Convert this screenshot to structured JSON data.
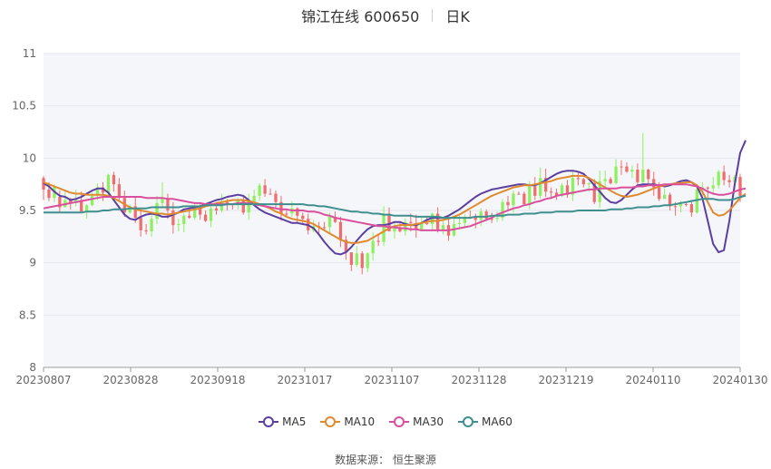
{
  "title": {
    "name": "锦江在线 600650",
    "period": "日K"
  },
  "source": "数据来源： 恒生聚源",
  "colors": {
    "up": "#f06d6d",
    "down": "#8ef05f",
    "plot_bg": "#f5f6fa",
    "grid": "#e3e6ee"
  },
  "chart_data": {
    "type": "candlestick",
    "x_labels": [
      "20230807",
      "20230828",
      "20230918",
      "20231017",
      "20231107",
      "20231128",
      "20231219",
      "20240110",
      "20240130"
    ],
    "y_ticks": [
      "8",
      "8.5",
      "9",
      "9.5",
      "10",
      "10.5",
      "11"
    ],
    "ylim": [
      8,
      11
    ],
    "series": [
      {
        "name": "MA5",
        "color": "#5b3fa0",
        "values": [
          9.76,
          9.73,
          9.68,
          9.64,
          9.63,
          9.6,
          9.61,
          9.63,
          9.66,
          9.69,
          9.71,
          9.71,
          9.67,
          9.6,
          9.53,
          9.46,
          9.42,
          9.41,
          9.44,
          9.46,
          9.47,
          9.46,
          9.44,
          9.44,
          9.46,
          9.48,
          9.51,
          9.52,
          9.53,
          9.54,
          9.56,
          9.58,
          9.6,
          9.61,
          9.63,
          9.64,
          9.65,
          9.64,
          9.6,
          9.55,
          9.51,
          9.48,
          9.46,
          9.44,
          9.42,
          9.4,
          9.38,
          9.38,
          9.37,
          9.36,
          9.33,
          9.27,
          9.2,
          9.14,
          9.09,
          9.08,
          9.1,
          9.15,
          9.21,
          9.27,
          9.32,
          9.35,
          9.36,
          9.36,
          9.37,
          9.39,
          9.39,
          9.37,
          9.36,
          9.36,
          9.38,
          9.41,
          9.43,
          9.43,
          9.43,
          9.45,
          9.48,
          9.51,
          9.55,
          9.59,
          9.63,
          9.66,
          9.68,
          9.7,
          9.71,
          9.72,
          9.73,
          9.74,
          9.75,
          9.75,
          9.74,
          9.74,
          9.76,
          9.79,
          9.82,
          9.85,
          9.87,
          9.88,
          9.88,
          9.87,
          9.85,
          9.8,
          9.74,
          9.68,
          9.62,
          9.58,
          9.57,
          9.6,
          9.65,
          9.7,
          9.74,
          9.75,
          9.75,
          9.75,
          9.74,
          9.73,
          9.74,
          9.76,
          9.78,
          9.79,
          9.77,
          9.73,
          9.62,
          9.4,
          9.18,
          9.1,
          9.12,
          9.4,
          9.75,
          10.05,
          10.17
        ]
      },
      {
        "name": "MA10",
        "color": "#e08a2e",
        "values": [
          9.77,
          9.75,
          9.73,
          9.71,
          9.69,
          9.67,
          9.66,
          9.66,
          9.65,
          9.65,
          9.65,
          9.65,
          9.64,
          9.62,
          9.59,
          9.56,
          9.53,
          9.51,
          9.5,
          9.49,
          9.48,
          9.47,
          9.47,
          9.46,
          9.47,
          9.48,
          9.49,
          9.5,
          9.51,
          9.52,
          9.54,
          9.55,
          9.57,
          9.58,
          9.59,
          9.6,
          9.6,
          9.6,
          9.59,
          9.58,
          9.56,
          9.54,
          9.52,
          9.49,
          9.47,
          9.44,
          9.42,
          9.41,
          9.4,
          9.39,
          9.37,
          9.34,
          9.31,
          9.28,
          9.25,
          9.22,
          9.2,
          9.19,
          9.19,
          9.2,
          9.21,
          9.24,
          9.27,
          9.3,
          9.33,
          9.35,
          9.36,
          9.36,
          9.36,
          9.37,
          9.38,
          9.39,
          9.4,
          9.4,
          9.41,
          9.42,
          9.44,
          9.46,
          9.49,
          9.52,
          9.55,
          9.58,
          9.61,
          9.64,
          9.66,
          9.68,
          9.7,
          9.72,
          9.73,
          9.74,
          9.74,
          9.75,
          9.76,
          9.77,
          9.78,
          9.8,
          9.81,
          9.82,
          9.83,
          9.83,
          9.83,
          9.81,
          9.78,
          9.75,
          9.72,
          9.69,
          9.66,
          9.64,
          9.63,
          9.64,
          9.65,
          9.67,
          9.69,
          9.71,
          9.73,
          9.74,
          9.75,
          9.76,
          9.76,
          9.77,
          9.77,
          9.74,
          9.68,
          9.58,
          9.48,
          9.45,
          9.46,
          9.5,
          9.56,
          9.62,
          9.66
        ]
      },
      {
        "name": "MA30",
        "color": "#d94f9e",
        "values": [
          9.52,
          9.53,
          9.54,
          9.55,
          9.56,
          9.57,
          9.58,
          9.59,
          9.6,
          9.61,
          9.62,
          9.63,
          9.63,
          9.63,
          9.63,
          9.63,
          9.63,
          9.63,
          9.63,
          9.62,
          9.62,
          9.62,
          9.62,
          9.61,
          9.61,
          9.6,
          9.59,
          9.58,
          9.57,
          9.57,
          9.56,
          9.56,
          9.56,
          9.56,
          9.56,
          9.56,
          9.57,
          9.57,
          9.57,
          9.56,
          9.55,
          9.54,
          9.53,
          9.52,
          9.51,
          9.51,
          9.5,
          9.5,
          9.5,
          9.49,
          9.49,
          9.48,
          9.46,
          9.45,
          9.43,
          9.42,
          9.41,
          9.4,
          9.39,
          9.38,
          9.37,
          9.36,
          9.35,
          9.35,
          9.34,
          9.34,
          9.33,
          9.33,
          9.32,
          9.32,
          9.31,
          9.31,
          9.31,
          9.31,
          9.31,
          9.31,
          9.32,
          9.33,
          9.34,
          9.35,
          9.37,
          9.39,
          9.41,
          9.43,
          9.46,
          9.48,
          9.5,
          9.52,
          9.53,
          9.55,
          9.56,
          9.58,
          9.59,
          9.61,
          9.62,
          9.64,
          9.65,
          9.66,
          9.67,
          9.68,
          9.69,
          9.7,
          9.7,
          9.71,
          9.71,
          9.71,
          9.71,
          9.72,
          9.72,
          9.72,
          9.73,
          9.73,
          9.74,
          9.74,
          9.74,
          9.75,
          9.75,
          9.75,
          9.75,
          9.75,
          9.74,
          9.73,
          9.71,
          9.68,
          9.66,
          9.65,
          9.65,
          9.66,
          9.68,
          9.7,
          9.71
        ]
      },
      {
        "name": "MA60",
        "color": "#3f8f8f",
        "values": [
          9.48,
          9.48,
          9.48,
          9.48,
          9.48,
          9.48,
          9.48,
          9.48,
          9.49,
          9.49,
          9.49,
          9.5,
          9.5,
          9.51,
          9.51,
          9.51,
          9.52,
          9.52,
          9.52,
          9.52,
          9.53,
          9.53,
          9.53,
          9.53,
          9.53,
          9.53,
          9.54,
          9.54,
          9.54,
          9.54,
          9.55,
          9.55,
          9.55,
          9.55,
          9.56,
          9.56,
          9.56,
          9.56,
          9.56,
          9.56,
          9.56,
          9.56,
          9.56,
          9.56,
          9.56,
          9.56,
          9.56,
          9.56,
          9.56,
          9.55,
          9.55,
          9.54,
          9.54,
          9.53,
          9.52,
          9.51,
          9.5,
          9.49,
          9.49,
          9.48,
          9.48,
          9.47,
          9.47,
          9.46,
          9.46,
          9.45,
          9.45,
          9.45,
          9.45,
          9.44,
          9.44,
          9.44,
          9.44,
          9.44,
          9.43,
          9.43,
          9.43,
          9.43,
          9.43,
          9.43,
          9.44,
          9.44,
          9.44,
          9.45,
          9.45,
          9.45,
          9.46,
          9.46,
          9.46,
          9.47,
          9.47,
          9.47,
          9.48,
          9.48,
          9.48,
          9.49,
          9.49,
          9.49,
          9.49,
          9.5,
          9.5,
          9.5,
          9.5,
          9.5,
          9.5,
          9.51,
          9.51,
          9.51,
          9.52,
          9.52,
          9.53,
          9.53,
          9.53,
          9.54,
          9.54,
          9.55,
          9.55,
          9.56,
          9.57,
          9.58,
          9.59,
          9.6,
          9.61,
          9.61,
          9.61,
          9.6,
          9.6,
          9.6,
          9.61,
          9.63,
          9.64
        ]
      }
    ],
    "candles": [
      [
        9.7,
        9.81,
        9.83,
        9.6
      ],
      [
        9.62,
        9.7,
        9.77,
        9.59
      ],
      [
        9.73,
        9.62,
        9.75,
        9.58
      ],
      [
        9.53,
        9.63,
        9.69,
        9.48
      ],
      [
        9.6,
        9.53,
        9.68,
        9.53
      ],
      [
        9.57,
        9.6,
        9.62,
        9.51
      ],
      [
        9.6,
        9.57,
        9.7,
        9.54
      ],
      [
        9.49,
        9.6,
        9.68,
        9.48
      ],
      [
        9.55,
        9.49,
        9.56,
        9.42
      ],
      [
        9.64,
        9.55,
        9.67,
        9.54
      ],
      [
        9.72,
        9.64,
        9.76,
        9.6
      ],
      [
        9.67,
        9.72,
        9.77,
        9.59
      ],
      [
        9.84,
        9.67,
        9.85,
        9.63
      ],
      [
        9.75,
        9.84,
        9.87,
        9.68
      ],
      [
        9.62,
        9.75,
        9.81,
        9.6
      ],
      [
        9.48,
        9.62,
        9.69,
        9.44
      ],
      [
        9.54,
        9.48,
        9.56,
        9.47
      ],
      [
        9.43,
        9.54,
        9.63,
        9.38
      ],
      [
        9.31,
        9.43,
        9.51,
        9.25
      ],
      [
        9.3,
        9.31,
        9.37,
        9.27
      ],
      [
        9.42,
        9.3,
        9.47,
        9.25
      ],
      [
        9.57,
        9.42,
        9.64,
        9.37
      ],
      [
        9.61,
        9.57,
        9.77,
        9.52
      ],
      [
        9.5,
        9.61,
        9.66,
        9.42
      ],
      [
        9.36,
        9.5,
        9.58,
        9.28
      ],
      [
        9.37,
        9.36,
        9.42,
        9.3
      ],
      [
        9.45,
        9.37,
        9.47,
        9.29
      ],
      [
        9.43,
        9.45,
        9.52,
        9.42
      ],
      [
        9.54,
        9.43,
        9.56,
        9.41
      ],
      [
        9.46,
        9.54,
        9.56,
        9.41
      ],
      [
        9.4,
        9.46,
        9.5,
        9.39
      ],
      [
        9.52,
        9.4,
        9.57,
        9.34
      ],
      [
        9.5,
        9.52,
        9.54,
        9.46
      ],
      [
        9.58,
        9.5,
        9.66,
        9.48
      ],
      [
        9.56,
        9.58,
        9.61,
        9.5
      ],
      [
        9.56,
        9.56,
        9.57,
        9.51
      ],
      [
        9.6,
        9.56,
        9.62,
        9.51
      ],
      [
        9.48,
        9.6,
        9.64,
        9.46
      ],
      [
        9.59,
        9.48,
        9.66,
        9.41
      ],
      [
        9.64,
        9.59,
        9.7,
        9.57
      ],
      [
        9.74,
        9.64,
        9.76,
        9.59
      ],
      [
        9.66,
        9.74,
        9.8,
        9.63
      ],
      [
        9.66,
        9.66,
        9.71,
        9.65
      ],
      [
        9.58,
        9.66,
        9.69,
        9.52
      ],
      [
        9.47,
        9.58,
        9.64,
        9.4
      ],
      [
        9.47,
        9.47,
        9.5,
        9.44
      ],
      [
        9.52,
        9.47,
        9.59,
        9.44
      ],
      [
        9.45,
        9.52,
        9.53,
        9.38
      ],
      [
        9.42,
        9.45,
        9.48,
        9.38
      ],
      [
        9.31,
        9.42,
        9.47,
        9.27
      ],
      [
        9.35,
        9.31,
        9.41,
        9.29
      ],
      [
        9.34,
        9.35,
        9.39,
        9.27
      ],
      [
        9.34,
        9.34,
        9.39,
        9.3
      ],
      [
        9.44,
        9.34,
        9.48,
        9.27
      ],
      [
        9.39,
        9.44,
        9.49,
        9.38
      ],
      [
        9.22,
        9.39,
        9.44,
        9.15
      ],
      [
        9.1,
        9.22,
        9.26,
        9.03
      ],
      [
        8.98,
        9.1,
        9.1,
        8.92
      ],
      [
        9.09,
        8.98,
        9.16,
        8.96
      ],
      [
        8.95,
        9.09,
        9.11,
        8.89
      ],
      [
        9.09,
        8.95,
        9.1,
        8.91
      ],
      [
        9.21,
        9.09,
        9.29,
        9.02
      ],
      [
        9.2,
        9.21,
        9.27,
        9.16
      ],
      [
        9.47,
        9.2,
        9.54,
        9.16
      ],
      [
        9.3,
        9.47,
        9.53,
        9.3
      ],
      [
        9.34,
        9.3,
        9.39,
        9.23
      ],
      [
        9.3,
        9.34,
        9.39,
        9.29
      ],
      [
        9.39,
        9.3,
        9.42,
        9.26
      ],
      [
        9.38,
        9.39,
        9.47,
        9.3
      ],
      [
        9.32,
        9.38,
        9.46,
        9.24
      ],
      [
        9.38,
        9.32,
        9.43,
        9.3
      ],
      [
        9.37,
        9.38,
        9.44,
        9.36
      ],
      [
        9.47,
        9.37,
        9.48,
        9.31
      ],
      [
        9.32,
        9.47,
        9.53,
        9.29
      ],
      [
        9.36,
        9.32,
        9.4,
        9.27
      ],
      [
        9.26,
        9.36,
        9.43,
        9.21
      ],
      [
        9.37,
        9.26,
        9.43,
        9.25
      ],
      [
        9.38,
        9.37,
        9.45,
        9.32
      ],
      [
        9.44,
        9.38,
        9.46,
        9.34
      ],
      [
        9.44,
        9.44,
        9.5,
        9.42
      ],
      [
        9.41,
        9.44,
        9.47,
        9.33
      ],
      [
        9.49,
        9.41,
        9.52,
        9.35
      ],
      [
        9.42,
        9.49,
        9.51,
        9.4
      ],
      [
        9.42,
        9.42,
        9.48,
        9.38
      ],
      [
        9.43,
        9.42,
        9.49,
        9.39
      ],
      [
        9.58,
        9.43,
        9.61,
        9.4
      ],
      [
        9.55,
        9.58,
        9.64,
        9.49
      ],
      [
        9.66,
        9.55,
        9.69,
        9.48
      ],
      [
        9.66,
        9.66,
        9.68,
        9.65
      ],
      [
        9.56,
        9.66,
        9.68,
        9.56
      ],
      [
        9.73,
        9.56,
        9.78,
        9.51
      ],
      [
        9.64,
        9.73,
        9.82,
        9.6
      ],
      [
        9.81,
        9.64,
        9.91,
        9.61
      ],
      [
        9.68,
        9.81,
        9.9,
        9.63
      ],
      [
        9.67,
        9.68,
        9.72,
        9.61
      ],
      [
        9.64,
        9.67,
        9.71,
        9.6
      ],
      [
        9.74,
        9.64,
        9.76,
        9.63
      ],
      [
        9.65,
        9.74,
        9.79,
        9.62
      ],
      [
        9.81,
        9.65,
        9.89,
        9.59
      ],
      [
        9.8,
        9.81,
        9.86,
        9.74
      ],
      [
        9.75,
        9.8,
        9.81,
        9.72
      ],
      [
        9.76,
        9.75,
        9.77,
        9.68
      ],
      [
        9.58,
        9.76,
        9.8,
        9.56
      ],
      [
        9.78,
        9.58,
        9.88,
        9.52
      ],
      [
        9.8,
        9.78,
        9.88,
        9.71
      ],
      [
        9.76,
        9.8,
        9.82,
        9.75
      ],
      [
        9.92,
        9.76,
        9.99,
        9.75
      ],
      [
        9.92,
        9.92,
        9.98,
        9.84
      ],
      [
        9.87,
        9.92,
        9.96,
        9.86
      ],
      [
        9.89,
        9.87,
        9.93,
        9.81
      ],
      [
        9.77,
        9.89,
        9.95,
        9.72
      ],
      [
        9.89,
        9.77,
        10.24,
        9.74
      ],
      [
        9.8,
        9.89,
        9.9,
        9.74
      ],
      [
        9.72,
        9.8,
        9.87,
        9.64
      ],
      [
        9.61,
        9.72,
        9.77,
        9.59
      ],
      [
        9.65,
        9.61,
        9.71,
        9.63
      ],
      [
        9.54,
        9.65,
        9.67,
        9.5
      ],
      [
        9.54,
        9.54,
        9.58,
        9.45
      ],
      [
        9.56,
        9.54,
        9.59,
        9.48
      ],
      [
        9.56,
        9.56,
        9.58,
        9.54
      ],
      [
        9.48,
        9.56,
        9.6,
        9.44
      ],
      [
        9.7,
        9.48,
        9.75,
        9.47
      ],
      [
        9.72,
        9.7,
        9.77,
        9.64
      ],
      [
        9.71,
        9.72,
        9.73,
        9.61
      ],
      [
        9.74,
        9.71,
        9.82,
        9.65
      ],
      [
        9.87,
        9.74,
        9.89,
        9.71
      ],
      [
        9.79,
        9.87,
        9.93,
        9.74
      ],
      [
        9.77,
        9.79,
        9.84,
        9.72
      ],
      [
        9.82,
        9.77,
        9.84,
        9.72
      ],
      [
        9.64,
        9.82,
        9.85,
        9.58
      ]
    ]
  }
}
